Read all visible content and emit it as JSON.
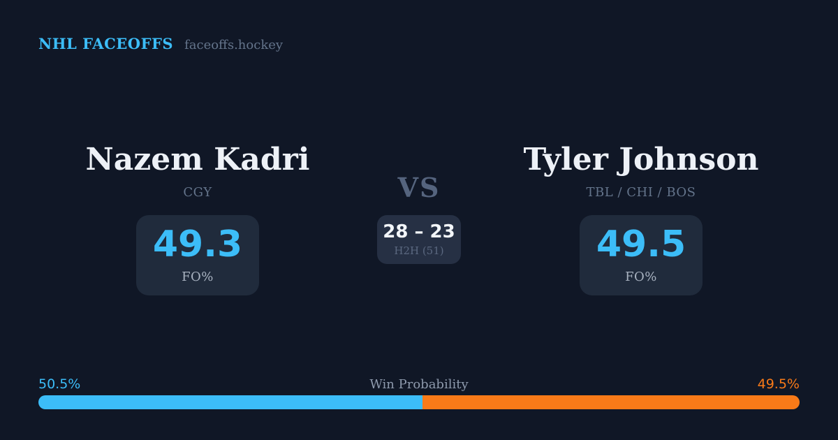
{
  "header": {
    "brand": "NHL FACEOFFS",
    "site": "faceoffs.hockey"
  },
  "players": {
    "left": {
      "name": "Nazem Kadri",
      "teams": "CGY",
      "fo_pct": "49.3",
      "stat_label": "FO%"
    },
    "right": {
      "name": "Tyler Johnson",
      "teams": "TBL / CHI / BOS",
      "fo_pct": "49.5",
      "stat_label": "FO%"
    }
  },
  "matchup": {
    "vs_label": "VS",
    "h2h_score": "28 – 23",
    "h2h_label": "H2H (51)"
  },
  "win_probability": {
    "label": "Win Probability",
    "left_pct": "50.5%",
    "right_pct": "49.5%",
    "left_value": 50.5,
    "right_value": 49.5
  },
  "colors": {
    "background": "#101726",
    "card_background": "#202b3c",
    "h2h_card_background": "#263044",
    "accent_blue": "#3cbdf8",
    "accent_orange": "#f97a18",
    "name_text": "#edf1f7",
    "muted_text": "#64748b"
  }
}
